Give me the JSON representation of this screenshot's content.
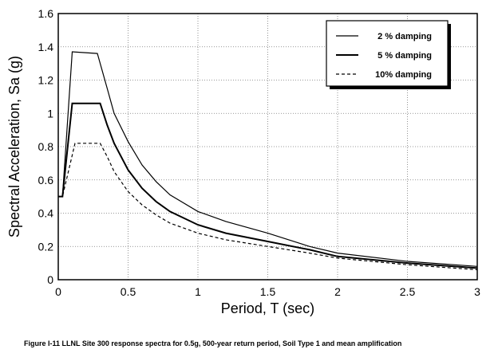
{
  "caption": "Figure I-11   LLNL Site 300 response spectra for 0.5g, 500-year return period, Soil Type 1 and mean amplification",
  "chart_data": {
    "type": "line",
    "xlabel": "Period, T (sec)",
    "ylabel": "Spectral Acceleration, Sa (g)",
    "xlim": [
      0,
      3
    ],
    "ylim": [
      0,
      1.6
    ],
    "xticks": [
      0,
      0.5,
      1,
      1.5,
      2,
      2.5,
      3
    ],
    "xtick_labels": [
      "0",
      "0.5",
      "1",
      "1.5",
      "2",
      "2.5",
      "3"
    ],
    "yticks": [
      0,
      0.2,
      0.4,
      0.6,
      0.8,
      1,
      1.2,
      1.4,
      1.6
    ],
    "ytick_labels": [
      "0",
      "0.2",
      "0.4",
      "0.6",
      "0.8",
      "1",
      "1.2",
      "1.4",
      "1.6"
    ],
    "grid": true,
    "legend_position": "top-right",
    "series": [
      {
        "name": "2 % damping",
        "dash": "solid",
        "x": [
          0,
          0.03,
          0.1,
          0.28,
          0.35,
          0.4,
          0.5,
          0.6,
          0.7,
          0.8,
          1.0,
          1.2,
          1.5,
          1.8,
          2.0,
          2.5,
          3.0
        ],
        "y": [
          0.5,
          0.5,
          1.37,
          1.36,
          1.15,
          1.0,
          0.83,
          0.69,
          0.59,
          0.51,
          0.41,
          0.35,
          0.28,
          0.2,
          0.16,
          0.11,
          0.08
        ]
      },
      {
        "name": "5 % damping",
        "dash": "solid",
        "x": [
          0,
          0.03,
          0.1,
          0.3,
          0.35,
          0.4,
          0.5,
          0.6,
          0.7,
          0.8,
          1.0,
          1.2,
          1.5,
          1.8,
          2.0,
          2.5,
          3.0
        ],
        "y": [
          0.5,
          0.5,
          1.06,
          1.06,
          0.93,
          0.82,
          0.66,
          0.55,
          0.47,
          0.41,
          0.33,
          0.28,
          0.23,
          0.18,
          0.14,
          0.1,
          0.07
        ]
      },
      {
        "name": "10% damping",
        "dash": "dashed",
        "x": [
          0,
          0.03,
          0.12,
          0.3,
          0.35,
          0.4,
          0.5,
          0.6,
          0.7,
          0.8,
          1.0,
          1.2,
          1.5,
          1.8,
          2.0,
          2.5,
          3.0
        ],
        "y": [
          0.5,
          0.5,
          0.82,
          0.82,
          0.74,
          0.65,
          0.53,
          0.45,
          0.39,
          0.34,
          0.28,
          0.24,
          0.2,
          0.16,
          0.13,
          0.09,
          0.06
        ]
      }
    ]
  }
}
